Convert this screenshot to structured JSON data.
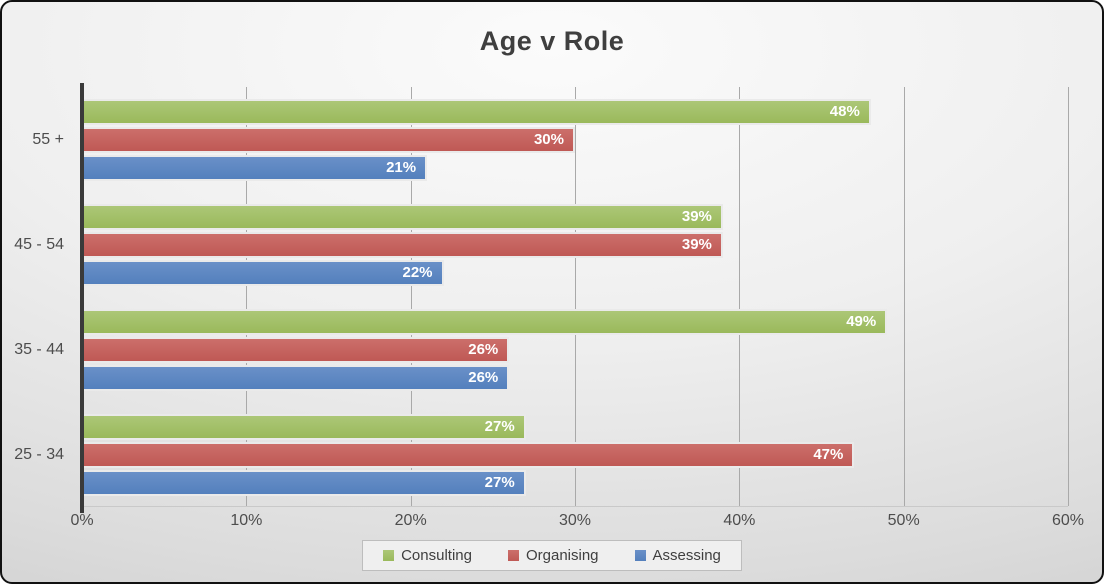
{
  "window_title": "Age v Role chart",
  "chart_data": {
    "type": "bar",
    "orientation": "horizontal",
    "title": "Age v Role",
    "categories": [
      "55 +",
      "45 - 54",
      "35 - 44",
      "25 - 34"
    ],
    "series": [
      {
        "name": "Consulting",
        "color": "#9ab95b",
        "color_light": "#acc777",
        "values": [
          48,
          39,
          49,
          27
        ]
      },
      {
        "name": "Organising",
        "color": "#bf5955",
        "color_light": "#cc6f6b",
        "values": [
          30,
          39,
          26,
          47
        ]
      },
      {
        "name": "Assessing",
        "color": "#5480bd",
        "color_light": "#6a90c8",
        "values": [
          21,
          22,
          26,
          27
        ]
      }
    ],
    "x_ticks": [
      "0%",
      "10%",
      "20%",
      "30%",
      "40%",
      "50%",
      "60%"
    ],
    "xlim": [
      0,
      60
    ],
    "value_label_suffix": "%",
    "value_labels_shown": true,
    "legend_position": "bottom",
    "gridlines": "vertical",
    "colors": {
      "title_text": "#3f3f3f",
      "axis_text": "#4d4d4d",
      "axis_line": "#3a3a3a",
      "gridline": "#a9a9a9",
      "bar_border": "#eaeaea",
      "legend_bg": "#efefef",
      "legend_border": "#bdbdbd",
      "value_label_text": "#ffffff"
    }
  }
}
